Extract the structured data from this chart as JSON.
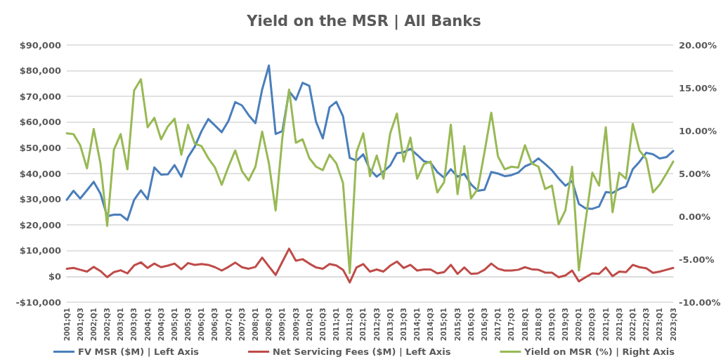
{
  "chart_data": {
    "type": "line",
    "title": "Yield on the MSR | All Banks",
    "categories": [
      "2001;Q1",
      null,
      "2001;Q3",
      null,
      "2002;Q1",
      null,
      "2002;Q3",
      null,
      "2003;Q1",
      null,
      "2003;Q3",
      null,
      "2004;Q1",
      null,
      "2004;Q3",
      null,
      "2005;Q1",
      null,
      "2005;Q3",
      null,
      "2006;Q1",
      null,
      "2006;Q3",
      null,
      "2007;Q1",
      null,
      "2007;Q3",
      null,
      "2008;Q1",
      null,
      "2008;Q3",
      null,
      "2009;Q1",
      null,
      "2009;Q3",
      null,
      "2010;Q1",
      null,
      "2010;Q3",
      null,
      "2011;Q1",
      null,
      "2011;Q3",
      null,
      "2012;Q1",
      null,
      "2012;Q3",
      null,
      "2013;Q1",
      null,
      "2013;Q3",
      null,
      "2014;Q1",
      null,
      "2014;Q3",
      null,
      "2015;Q1",
      null,
      "2015;Q3",
      null,
      "2016;Q1",
      null,
      "2016;Q3",
      null,
      "2017;Q1",
      null,
      "2017;Q3",
      null,
      "2018;Q1",
      null,
      "2018;Q3",
      null,
      "2019;Q1",
      null,
      "2019;Q3",
      null,
      "2020;Q1",
      null,
      "2020;Q3",
      null,
      "2021;Q1",
      null,
      "2021;Q3",
      null,
      "2022;Q1",
      null,
      "2022;Q3",
      null,
      "2023;Q1",
      null,
      "2023;Q3"
    ],
    "series": [
      {
        "name": "FV MSR ($M) | Left Axis",
        "color": "#4a7ebb",
        "values": [
          29800,
          33300,
          30300,
          33500,
          36800,
          32200,
          23400,
          24000,
          24000,
          21900,
          29800,
          33500,
          30000,
          42400,
          39600,
          39700,
          43300,
          38800,
          46400,
          50500,
          56500,
          61200,
          58700,
          56100,
          60500,
          67800,
          66500,
          62700,
          59600,
          72700,
          82000,
          55400,
          56500,
          72000,
          68700,
          75300,
          74100,
          60100,
          53700,
          65800,
          67900,
          62300,
          46100,
          45000,
          47500,
          41500,
          38800,
          40800,
          43100,
          47900,
          48300,
          49600,
          47300,
          44800,
          44200,
          40600,
          38400,
          41700,
          38800,
          39900,
          35800,
          33300,
          33700,
          40600,
          40000,
          39000,
          39400,
          40400,
          42800,
          43900,
          45900,
          43700,
          41300,
          38100,
          35300,
          37100,
          28200,
          26500,
          26300,
          27200,
          32800,
          32500,
          34000,
          35000,
          41700,
          44600,
          48100,
          47500,
          45900,
          46400,
          48800
        ]
      },
      {
        "name": "Net Servicing Fees ($M) | Left Axis",
        "color": "#be4b48",
        "values": [
          3000,
          3300,
          2600,
          1900,
          3700,
          2100,
          -300,
          1700,
          2400,
          1200,
          4300,
          5500,
          3300,
          5000,
          3600,
          4200,
          5000,
          2800,
          5200,
          4500,
          4800,
          4500,
          3600,
          2300,
          3700,
          5400,
          3600,
          3000,
          3700,
          7300,
          3900,
          600,
          5700,
          10800,
          6100,
          6700,
          5000,
          3500,
          3000,
          4800,
          4300,
          2600,
          -2300,
          3500,
          4800,
          1900,
          2700,
          1900,
          4200,
          5800,
          3300,
          4500,
          2300,
          2700,
          2700,
          1200,
          1700,
          4500,
          1000,
          3500,
          1000,
          1200,
          2600,
          5000,
          3000,
          2300,
          2300,
          2600,
          3600,
          2800,
          2600,
          1500,
          1500,
          -300,
          400,
          2300,
          -1900,
          -300,
          1200,
          1000,
          3500,
          100,
          1900,
          1700,
          4500,
          3600,
          3200,
          1400,
          1900,
          2600,
          3300
        ]
      },
      {
        "name": "Yield on MSR (%) | Right Axis",
        "color": "#98b954",
        "axis": "y2",
        "values": [
          9.7,
          9.6,
          8.3,
          5.6,
          10.2,
          6.2,
          -1.1,
          7.8,
          9.6,
          5.5,
          14.7,
          16.0,
          10.4,
          11.5,
          9.0,
          10.5,
          11.4,
          7.2,
          10.7,
          8.5,
          8.2,
          6.8,
          5.7,
          3.7,
          5.8,
          7.7,
          5.3,
          4.2,
          5.8,
          9.9,
          6.2,
          0.7,
          9.2,
          14.8,
          8.6,
          9.0,
          6.8,
          5.8,
          5.4,
          7.2,
          6.2,
          3.9,
          -6.6,
          7.5,
          9.7,
          4.7,
          7.1,
          4.4,
          9.7,
          12.0,
          6.4,
          9.2,
          4.4,
          6.1,
          6.4,
          2.8,
          4.0,
          10.7,
          2.6,
          8.2,
          2.1,
          3.2,
          7.5,
          12.1,
          7.0,
          5.5,
          5.8,
          5.7,
          8.3,
          6.2,
          5.8,
          3.2,
          3.6,
          -0.9,
          0.7,
          5.8,
          -6.3,
          -0.5,
          5.1,
          3.6,
          10.4,
          0.5,
          5.1,
          4.4,
          10.8,
          7.7,
          6.7,
          2.8,
          3.7,
          5.0,
          6.4
        ]
      }
    ],
    "ylim": [
      -10000,
      90000
    ],
    "yticks": [
      {
        "value": -10000,
        "label": "-$10,000"
      },
      {
        "value": 0,
        "label": "$0"
      },
      {
        "value": 10000,
        "label": "$10,000"
      },
      {
        "value": 20000,
        "label": "$20,000"
      },
      {
        "value": 30000,
        "label": "$30,000"
      },
      {
        "value": 40000,
        "label": "$40,000"
      },
      {
        "value": 50000,
        "label": "$50,000"
      },
      {
        "value": 60000,
        "label": "$60,000"
      },
      {
        "value": 70000,
        "label": "$70,000"
      },
      {
        "value": 80000,
        "label": "$80,000"
      },
      {
        "value": 90000,
        "label": "$90,000"
      }
    ],
    "y2lim": [
      -10,
      20
    ],
    "y2ticks": [
      {
        "value": -10,
        "label": "-10.00%"
      },
      {
        "value": -5,
        "label": "-5.00%"
      },
      {
        "value": 0,
        "label": "0.00%"
      },
      {
        "value": 5,
        "label": "5.00%"
      },
      {
        "value": 10,
        "label": "10.00%"
      },
      {
        "value": 15,
        "label": "15.00%"
      },
      {
        "value": 20,
        "label": "20.00%"
      }
    ],
    "grid": "y",
    "legend": "bottom",
    "marker": "none",
    "line_style": "solid"
  }
}
